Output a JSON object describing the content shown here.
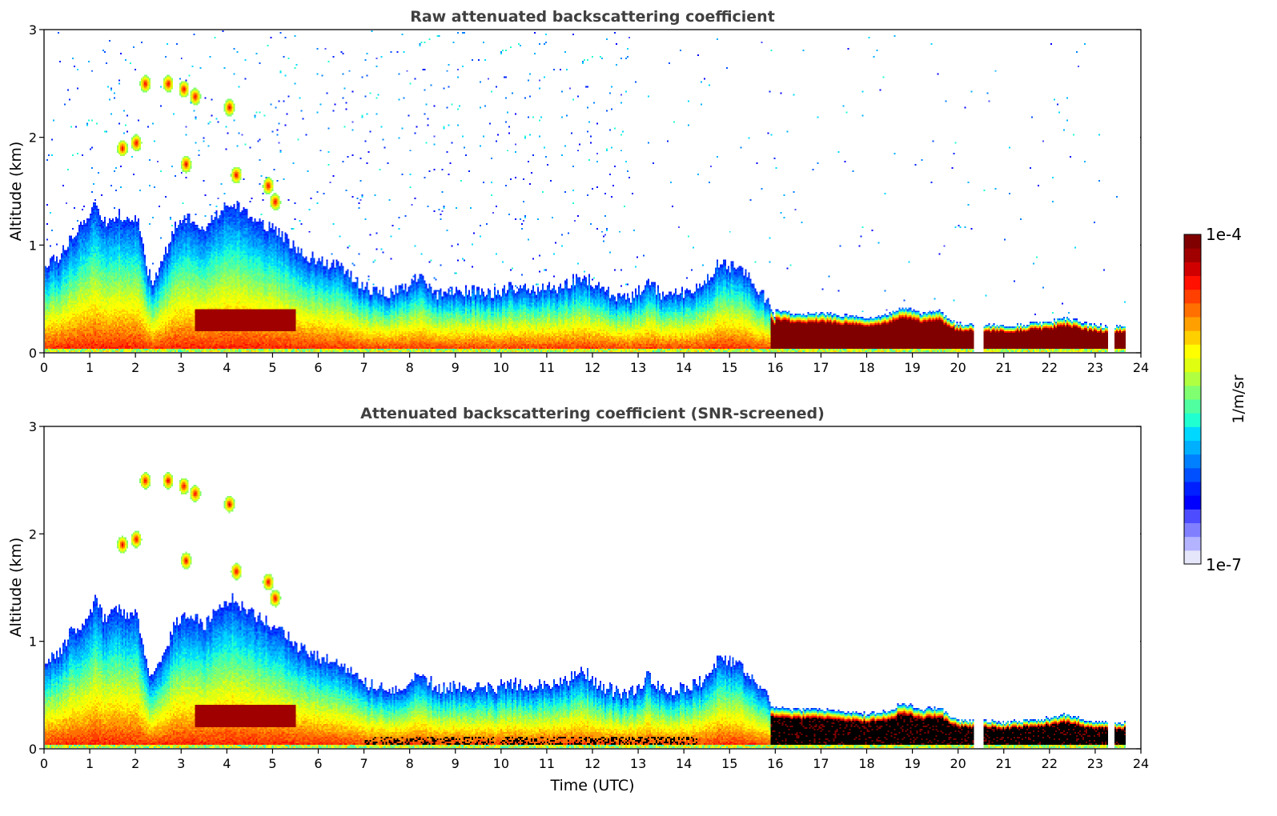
{
  "chart_data": [
    {
      "type": "heatmap",
      "title": "Raw attenuated backscattering coefficient",
      "xlabel": "",
      "ylabel": "Altitude (km)",
      "xlim": [
        0,
        24
      ],
      "ylim": [
        0,
        3
      ],
      "xticks": [
        "0",
        "1",
        "2",
        "3",
        "4",
        "5",
        "6",
        "7",
        "8",
        "9",
        "10",
        "11",
        "12",
        "13",
        "14",
        "15",
        "16",
        "17",
        "18",
        "19",
        "20",
        "21",
        "22",
        "23",
        "24"
      ],
      "yticks": [
        "0",
        "1",
        "2",
        "3"
      ],
      "screened": false
    },
    {
      "type": "heatmap",
      "title": "Attenuated backscattering coefficient (SNR-screened)",
      "xlabel": "Time (UTC)",
      "ylabel": "Altitude (km)",
      "xlim": [
        0,
        24
      ],
      "ylim": [
        0,
        3
      ],
      "xticks": [
        "0",
        "1",
        "2",
        "3",
        "4",
        "5",
        "6",
        "7",
        "8",
        "9",
        "10",
        "11",
        "12",
        "13",
        "14",
        "15",
        "16",
        "17",
        "18",
        "19",
        "20",
        "21",
        "22",
        "23",
        "24"
      ],
      "yticks": [
        "0",
        "1",
        "2",
        "3"
      ],
      "screened": true
    }
  ],
  "colorbar": {
    "label": "1/m/sr",
    "max_label": "1e-4",
    "min_label": "1e-7",
    "scale": "log",
    "range": [
      1e-07,
      0.0001
    ],
    "colormap": [
      "#e6e6fa",
      "#b3b3ff",
      "#8080ff",
      "#4d4dff",
      "#0000ff",
      "#0020ff",
      "#0050ff",
      "#0080ff",
      "#00b0ff",
      "#00d8ff",
      "#20ffd0",
      "#50ffa0",
      "#80ff70",
      "#b0ff40",
      "#e0ff10",
      "#ffff00",
      "#ffd000",
      "#ffa000",
      "#ff7000",
      "#ff4000",
      "#ff1000",
      "#d00000",
      "#a00000",
      "#800000"
    ]
  },
  "profile": {
    "description_units": "time in hours UTC, altitude in km",
    "layer_top": [
      [
        0,
        0.82
      ],
      [
        0.3,
        0.88
      ],
      [
        0.6,
        1.1
      ],
      [
        0.9,
        1.2
      ],
      [
        1.1,
        1.38
      ],
      [
        1.3,
        1.2
      ],
      [
        1.6,
        1.3
      ],
      [
        1.85,
        1.2
      ],
      [
        2.0,
        1.3
      ],
      [
        2.2,
        0.85
      ],
      [
        2.35,
        0.65
      ],
      [
        2.6,
        0.9
      ],
      [
        2.9,
        1.2
      ],
      [
        3.2,
        1.25
      ],
      [
        3.5,
        1.15
      ],
      [
        3.8,
        1.3
      ],
      [
        4.1,
        1.4
      ],
      [
        4.4,
        1.3
      ],
      [
        4.8,
        1.2
      ],
      [
        5.2,
        1.1
      ],
      [
        5.5,
        0.95
      ],
      [
        6.0,
        0.85
      ],
      [
        6.5,
        0.8
      ],
      [
        7.0,
        0.6
      ],
      [
        7.5,
        0.55
      ],
      [
        8.0,
        0.6
      ],
      [
        8.2,
        0.72
      ],
      [
        8.6,
        0.55
      ],
      [
        9.2,
        0.58
      ],
      [
        9.8,
        0.55
      ],
      [
        10.2,
        0.6
      ],
      [
        10.8,
        0.58
      ],
      [
        11.4,
        0.62
      ],
      [
        11.8,
        0.72
      ],
      [
        12.2,
        0.58
      ],
      [
        12.7,
        0.5
      ],
      [
        13.0,
        0.55
      ],
      [
        13.2,
        0.68
      ],
      [
        13.5,
        0.55
      ],
      [
        14.0,
        0.55
      ],
      [
        14.4,
        0.62
      ],
      [
        14.8,
        0.85
      ],
      [
        15.3,
        0.75
      ],
      [
        15.7,
        0.55
      ],
      [
        16.0,
        0.38
      ],
      [
        16.5,
        0.36
      ],
      [
        17.0,
        0.36
      ],
      [
        17.5,
        0.34
      ],
      [
        18.0,
        0.32
      ],
      [
        18.5,
        0.35
      ],
      [
        18.8,
        0.42
      ],
      [
        19.2,
        0.36
      ],
      [
        19.6,
        0.38
      ],
      [
        20.0,
        0.26
      ],
      [
        20.5,
        0.26
      ],
      [
        21.0,
        0.24
      ],
      [
        21.5,
        0.26
      ],
      [
        22.0,
        0.28
      ],
      [
        22.4,
        0.32
      ],
      [
        22.8,
        0.26
      ],
      [
        23.2,
        0.24
      ],
      [
        23.7,
        0.24
      ]
    ],
    "data_end_hour": 23.7,
    "gap_hours": [
      [
        20.35,
        20.55
      ],
      [
        23.3,
        23.45
      ]
    ],
    "cloud_patches": [
      [
        1.7,
        1.9
      ],
      [
        2.0,
        1.95
      ],
      [
        2.2,
        2.5
      ],
      [
        2.7,
        2.5
      ],
      [
        3.05,
        2.45
      ],
      [
        3.3,
        2.38
      ],
      [
        3.1,
        1.75
      ],
      [
        4.05,
        2.28
      ],
      [
        4.2,
        1.65
      ],
      [
        4.9,
        1.55
      ],
      [
        5.05,
        1.4
      ]
    ]
  }
}
